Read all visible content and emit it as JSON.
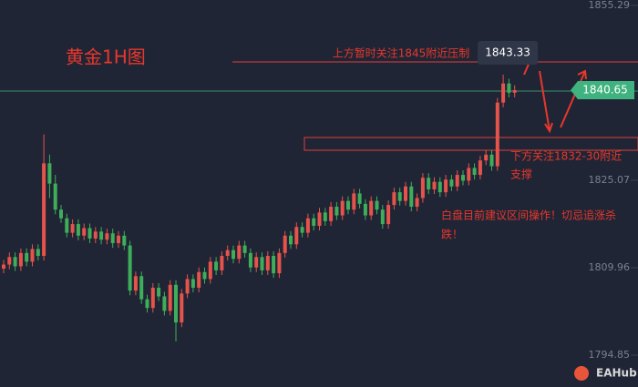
{
  "chart_data": {
    "type": "candlestick",
    "title": "黄金1H图",
    "annotations": [
      "上方暂时关注1845附近压制",
      "下方关注1832-30附近",
      "支撑",
      "白盘目前建议区间操作！切忌追涨杀",
      "跌！"
    ],
    "watermark": "EAHub",
    "up_color": "#e5534b",
    "down_color": "#3fae5a",
    "ylim": [
      1789.34,
      1856.23
    ],
    "yticks": [
      1855.29,
      1825.07,
      1809.96,
      1794.85
    ],
    "open": [
      1809.8,
      1810.5,
      1811.8,
      1810.2,
      1812.5,
      1811.0,
      1813.2,
      1812.0,
      1828.0,
      1824.5,
      1820.0,
      1818.5,
      1816.0,
      1817.5,
      1815.5,
      1816.8,
      1815.0,
      1816.2,
      1814.8,
      1815.9,
      1814.2,
      1815.5,
      1813.8,
      1806.0,
      1808.5,
      1804.5,
      1803.0,
      1806.5,
      1805.0,
      1802.5,
      1807.0,
      1800.5,
      1805.5,
      1808.0,
      1806.5,
      1809.2,
      1808.0,
      1811.0,
      1809.5,
      1812.0,
      1813.0,
      1811.5,
      1813.8,
      1812.5,
      1810.0,
      1811.8,
      1809.5,
      1812.0,
      1809.0,
      1812.5,
      1815.5,
      1814.0,
      1817.0,
      1816.0,
      1818.5,
      1817.2,
      1819.5,
      1818.0,
      1820.5,
      1819.0,
      1821.5,
      1820.0,
      1822.8,
      1821.0,
      1819.0,
      1821.5,
      1820.0,
      1817.5,
      1820.8,
      1823.0,
      1821.5,
      1824.0,
      1820.5,
      1822.0,
      1825.5,
      1823.5,
      1824.8,
      1823.0,
      1825.2,
      1824.0,
      1826.0,
      1825.0,
      1827.2,
      1826.0,
      1828.5,
      1829.5,
      1827.5,
      1838.5,
      1841.8,
      1840.2
    ],
    "high": [
      1811.3,
      1812.6,
      1812.6,
      1813.3,
      1813.3,
      1814.0,
      1814.0,
      1833.0,
      1829.5,
      1826.0,
      1820.8,
      1819.3,
      1818.3,
      1818.3,
      1817.6,
      1817.6,
      1817.0,
      1817.0,
      1816.7,
      1816.7,
      1816.3,
      1816.3,
      1814.6,
      1809.3,
      1809.3,
      1805.3,
      1807.3,
      1807.3,
      1805.8,
      1807.8,
      1807.8,
      1806.3,
      1808.8,
      1808.8,
      1810.0,
      1810.0,
      1811.8,
      1811.8,
      1812.8,
      1813.8,
      1813.8,
      1814.6,
      1814.6,
      1813.3,
      1812.6,
      1812.6,
      1812.8,
      1812.8,
      1813.3,
      1816.3,
      1816.3,
      1817.8,
      1817.8,
      1819.3,
      1819.3,
      1820.3,
      1820.3,
      1821.3,
      1821.3,
      1822.3,
      1822.3,
      1823.6,
      1823.6,
      1821.8,
      1822.3,
      1822.3,
      1820.8,
      1821.6,
      1823.8,
      1823.8,
      1824.8,
      1824.8,
      1822.8,
      1826.3,
      1826.3,
      1825.6,
      1825.6,
      1826.0,
      1826.0,
      1826.8,
      1826.8,
      1828.0,
      1828.0,
      1829.3,
      1830.3,
      1830.3,
      1839.3,
      1843.33,
      1842.6,
      1841.5
    ],
    "low": [
      1809.0,
      1809.7,
      1809.4,
      1809.4,
      1810.2,
      1810.2,
      1811.2,
      1811.2,
      1822.0,
      1819.2,
      1817.7,
      1815.2,
      1815.2,
      1814.7,
      1814.7,
      1814.2,
      1814.2,
      1814.0,
      1814.0,
      1813.4,
      1813.4,
      1813.0,
      1805.2,
      1805.2,
      1803.7,
      1802.2,
      1802.2,
      1804.2,
      1801.7,
      1801.7,
      1797.2,
      1799.7,
      1804.7,
      1805.7,
      1805.7,
      1807.2,
      1807.2,
      1808.7,
      1808.7,
      1811.2,
      1810.7,
      1810.7,
      1811.7,
      1809.2,
      1809.2,
      1808.7,
      1808.7,
      1808.2,
      1808.2,
      1811.7,
      1813.2,
      1813.2,
      1815.2,
      1815.2,
      1816.4,
      1816.4,
      1817.2,
      1817.2,
      1818.2,
      1818.2,
      1819.2,
      1819.2,
      1820.2,
      1818.2,
      1818.2,
      1819.2,
      1816.7,
      1816.7,
      1820.0,
      1820.7,
      1820.7,
      1819.7,
      1819.7,
      1821.2,
      1822.7,
      1822.7,
      1822.2,
      1822.2,
      1823.2,
      1823.2,
      1824.2,
      1824.2,
      1825.2,
      1825.2,
      1827.7,
      1826.7,
      1826.7,
      1837.7,
      1839.4,
      1839.4
    ],
    "close": [
      1810.5,
      1811.8,
      1810.2,
      1812.5,
      1811.0,
      1813.2,
      1812.0,
      1828.0,
      1824.5,
      1820.0,
      1818.5,
      1816.0,
      1817.5,
      1815.5,
      1816.8,
      1815.0,
      1816.2,
      1814.8,
      1815.9,
      1814.2,
      1815.5,
      1813.8,
      1806.0,
      1808.5,
      1804.5,
      1803.0,
      1806.5,
      1805.0,
      1802.5,
      1807.0,
      1800.5,
      1805.5,
      1808.0,
      1806.5,
      1809.2,
      1808.0,
      1811.0,
      1809.5,
      1812.0,
      1813.0,
      1811.5,
      1813.8,
      1812.5,
      1810.0,
      1811.8,
      1809.5,
      1812.0,
      1809.0,
      1812.5,
      1815.5,
      1814.0,
      1817.0,
      1816.0,
      1818.5,
      1817.2,
      1819.5,
      1818.0,
      1820.5,
      1819.0,
      1821.5,
      1820.0,
      1822.8,
      1821.0,
      1819.0,
      1821.5,
      1820.0,
      1817.5,
      1820.8,
      1823.0,
      1821.5,
      1824.0,
      1820.5,
      1822.0,
      1825.5,
      1823.5,
      1824.8,
      1823.0,
      1825.2,
      1824.0,
      1826.0,
      1825.0,
      1827.2,
      1826.0,
      1828.5,
      1829.5,
      1827.5,
      1838.5,
      1841.8,
      1840.2,
      1840.65
    ]
  }
}
